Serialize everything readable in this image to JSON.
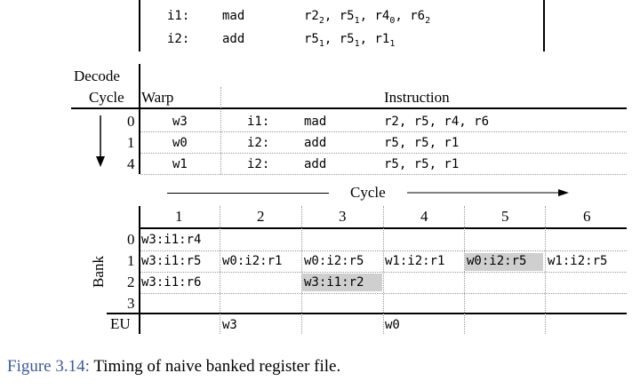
{
  "top_instructions": [
    {
      "id": "i1:",
      "op": "mad",
      "regs": [
        {
          "r": "r2",
          "s": "2"
        },
        {
          "r": "r5",
          "s": "1"
        },
        {
          "r": "r4",
          "s": "0"
        },
        {
          "r": "r6",
          "s": "2"
        }
      ]
    },
    {
      "id": "i2:",
      "op": "add",
      "regs": [
        {
          "r": "r5",
          "s": "1"
        },
        {
          "r": "r5",
          "s": "1"
        },
        {
          "r": "r1",
          "s": "1"
        }
      ]
    }
  ],
  "decode_table": {
    "header_line1": "Decode",
    "header_cycle": "Cycle",
    "header_warp": "Warp",
    "header_instruction": "Instruction",
    "rows": [
      {
        "cycle": "0",
        "warp": "w3",
        "id": "i1:",
        "op": "mad",
        "regs": "r2, r5, r4, r6"
      },
      {
        "cycle": "1",
        "warp": "w0",
        "id": "i2:",
        "op": "add",
        "regs": "r5, r5, r1"
      },
      {
        "cycle": "4",
        "warp": "w1",
        "id": "i2:",
        "op": "add",
        "regs": "r5, r5, r1"
      }
    ]
  },
  "timing": {
    "cycle_label": "Cycle",
    "bank_label": "Bank",
    "eu_label": "EU",
    "cycles": [
      "1",
      "2",
      "3",
      "4",
      "5",
      "6"
    ],
    "banks": [
      "0",
      "1",
      "2",
      "3"
    ],
    "cells": {
      "b0": [
        "w3:i1:r4",
        "",
        "",
        "",
        "",
        ""
      ],
      "b1": [
        "w3:i1:r5",
        "w0:i2:r1",
        "w0:i2:r5",
        "w1:i2:r1",
        "w0:i2:r5",
        "w1:i2:r5"
      ],
      "b2": [
        "w3:i1:r6",
        "",
        "w3:i1:r2",
        "",
        "",
        ""
      ],
      "b3": [
        "",
        "",
        "",
        "",
        "",
        ""
      ]
    },
    "eu": [
      "",
      "w3",
      "",
      "w0",
      "",
      ""
    ]
  },
  "caption": {
    "label": "Figure 3.14:",
    "text": "Timing of naive banked register file."
  }
}
